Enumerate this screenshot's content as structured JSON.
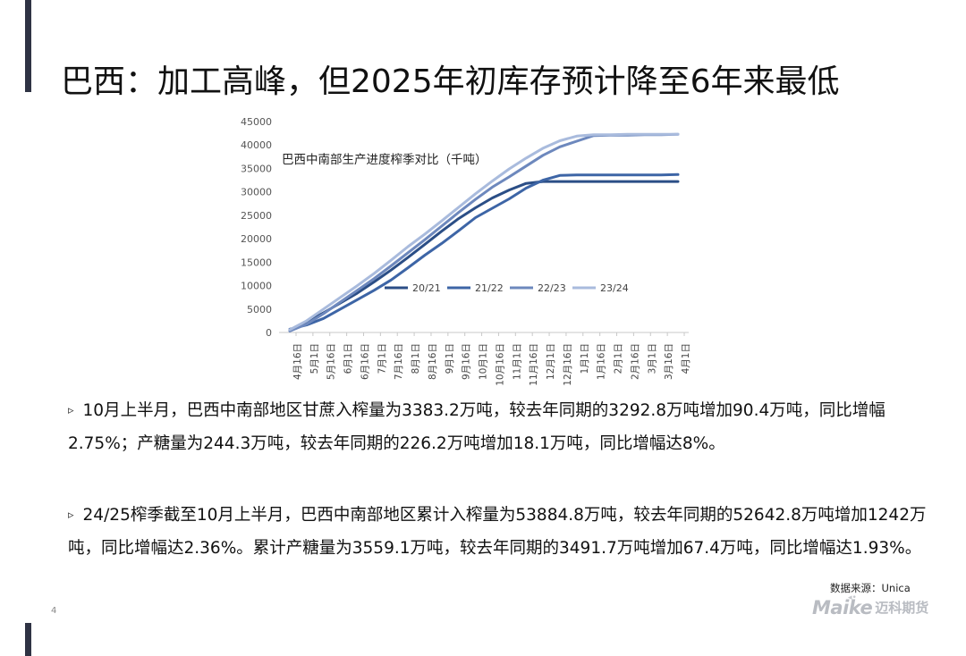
{
  "page": {
    "title": "巴西：加工高峰，但2025年初库存预计降至6年来最低",
    "page_number": "4",
    "source": "数据来源：Unica",
    "logo_text_en": "Maike",
    "logo_text_cn": "迈科期货"
  },
  "paragraphs": [
    {
      "bullet": "▹",
      "text": "10月上半月，巴西中南部地区甘蔗入榨量为3383.2万吨，较去年同期的3292.8万吨增加90.4万吨，同比增幅2.75%；产糖量为244.3万吨，较去年同期的226.2万吨增加18.1万吨，同比增幅达8%。"
    },
    {
      "bullet": "▹",
      "text": "24/25榨季截至10月上半月，巴西中南部地区累计入榨量为53884.8万吨，较去年同期的52642.8万吨增加1242万吨，同比增幅达2.36%。累计产糖量为3559.1万吨，较去年同期的3491.7万吨增加67.4万吨，同比增幅达1.93%。"
    }
  ],
  "chart_data": {
    "type": "line",
    "title": "巴西中南部生产进度榨季对比（千吨）",
    "xlabel": "",
    "ylabel": "",
    "ylim": [
      0,
      45000
    ],
    "yticks": [
      0,
      5000,
      10000,
      15000,
      20000,
      25000,
      30000,
      35000,
      40000,
      45000
    ],
    "grid": false,
    "legend_position": "bottom-right inside plot",
    "categories": [
      "4月16日",
      "5月1日",
      "5月16日",
      "6月1日",
      "6月16日",
      "7月1日",
      "7月16日",
      "8月1日",
      "8月16日",
      "9月1日",
      "9月16日",
      "10月1日",
      "10月16日",
      "11月1日",
      "11月16日",
      "12月1日",
      "12月16日",
      "1月1日",
      "1月16日",
      "2月1日",
      "2月16日",
      "3月1日",
      "3月16日",
      "4月1日"
    ],
    "series": [
      {
        "name": "20/21",
        "color": "#2b4e86",
        "values": [
          500,
          2200,
          4200,
          6300,
          8400,
          10800,
          13300,
          16000,
          18800,
          21600,
          24300,
          26600,
          28700,
          30400,
          31800,
          32200,
          32200,
          32200,
          32200,
          32200,
          32200,
          32200,
          32200,
          32200
        ]
      },
      {
        "name": "21/22",
        "color": "#3d65a6",
        "values": [
          700,
          1600,
          3000,
          5000,
          7000,
          9000,
          11200,
          13800,
          16500,
          19000,
          21700,
          24500,
          26500,
          28500,
          30800,
          32500,
          33500,
          33600,
          33600,
          33600,
          33600,
          33600,
          33600,
          33700
        ]
      },
      {
        "name": "22/23",
        "color": "#6d88bd",
        "values": [
          300,
          1800,
          4000,
          6500,
          9000,
          11500,
          14200,
          17000,
          19800,
          22700,
          25600,
          28400,
          31000,
          33200,
          35500,
          37800,
          39600,
          40800,
          42000,
          42100,
          42100,
          42200,
          42200,
          42300
        ]
      },
      {
        "name": "23/24",
        "color": "#a9bbdd",
        "values": [
          600,
          2500,
          5000,
          7500,
          10000,
          12600,
          15400,
          18300,
          21000,
          23800,
          26700,
          29600,
          32300,
          34900,
          37200,
          39300,
          40900,
          41900,
          42200,
          42200,
          42300,
          42300,
          42300,
          42300
        ]
      }
    ]
  }
}
